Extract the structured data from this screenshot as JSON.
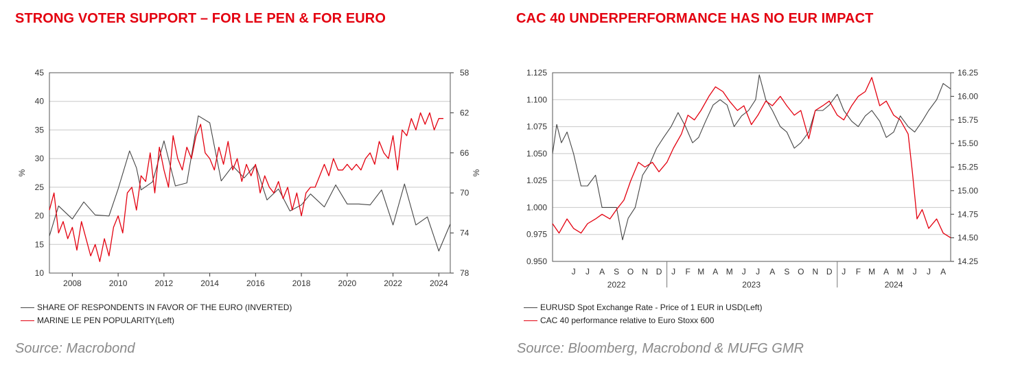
{
  "left": {
    "title": "STRONG VOTER SUPPORT – FOR LE PEN & FOR EURO",
    "source": "Source: Macrobond",
    "legend": [
      {
        "label": "SHARE OF RESPONDENTS IN FAVOR OF THE EURO (INVERTED)",
        "color": "#444444"
      },
      {
        "label": "MARINE LE PEN POPULARITY(Left)",
        "color": "#e3000f"
      }
    ]
  },
  "right": {
    "title": "CAC 40 UNDERPERFORMANCE HAS NO EUR IMPACT",
    "source": "Source: Bloomberg, Macrobond & MUFG GMR",
    "legend": [
      {
        "label": "EURUSD Spot Exchange Rate - Price of 1 EUR in USD(Left)",
        "color": "#444444"
      },
      {
        "label": "CAC 40 performance relative to Euro Stoxx 600",
        "color": "#e3000f"
      }
    ]
  },
  "chart_data": [
    {
      "type": "line",
      "title": "STRONG VOTER SUPPORT – FOR LE PEN & FOR EURO",
      "ylabel": "%",
      "y2label": "%",
      "xlim": [
        2007.0,
        2024.5
      ],
      "ylim": [
        10,
        45
      ],
      "y2lim": [
        58,
        78
      ],
      "y2_inverted": true,
      "x_ticks": [
        2008,
        2010,
        2012,
        2014,
        2016,
        2018,
        2020,
        2022,
        2024
      ],
      "y_ticks": [
        10,
        15,
        20,
        25,
        30,
        35,
        40,
        45
      ],
      "y2_ticks": [
        58,
        62,
        66,
        70,
        74,
        78
      ],
      "grid": true,
      "legend_position": "bottom-left",
      "series": [
        {
          "name": "SHARE OF RESPONDENTS IN FAVOR OF THE EURO (INVERTED)",
          "axis": "right",
          "color": "#444444",
          "x": [
            2007.0,
            2007.4,
            2008.0,
            2008.5,
            2009.0,
            2009.6,
            2010.0,
            2010.5,
            2010.8,
            2011.0,
            2011.5,
            2012.0,
            2012.5,
            2013.0,
            2013.5,
            2014.0,
            2014.5,
            2015.0,
            2015.5,
            2016.0,
            2016.5,
            2017.0,
            2017.5,
            2018.0,
            2018.4,
            2019.0,
            2019.5,
            2020.0,
            2020.5,
            2021.0,
            2021.5,
            2022.0,
            2022.5,
            2023.0,
            2023.5,
            2024.0,
            2024.5
          ],
          "values": [
            74.3,
            71.3,
            72.6,
            70.9,
            72.2,
            72.3,
            69.6,
            65.8,
            67.5,
            69.7,
            68.9,
            64.8,
            69.3,
            69.0,
            62.3,
            63.0,
            68.8,
            67.3,
            68.5,
            67.2,
            70.7,
            69.6,
            71.8,
            71.2,
            70.1,
            71.4,
            69.2,
            71.1,
            71.1,
            71.2,
            69.7,
            73.2,
            69.1,
            73.2,
            72.4,
            75.8,
            73.1
          ]
        },
        {
          "name": "MARINE LE PEN POPULARITY(Left)",
          "axis": "left",
          "color": "#e3000f",
          "x": [
            2007.0,
            2007.2,
            2007.4,
            2007.6,
            2007.8,
            2008.0,
            2008.2,
            2008.4,
            2008.6,
            2008.8,
            2009.0,
            2009.2,
            2009.4,
            2009.6,
            2009.8,
            2010.0,
            2010.2,
            2010.4,
            2010.6,
            2010.8,
            2011.0,
            2011.2,
            2011.4,
            2011.6,
            2011.8,
            2012.0,
            2012.2,
            2012.4,
            2012.6,
            2012.8,
            2013.0,
            2013.2,
            2013.4,
            2013.6,
            2013.8,
            2014.0,
            2014.2,
            2014.4,
            2014.6,
            2014.8,
            2015.0,
            2015.2,
            2015.4,
            2015.6,
            2015.8,
            2016.0,
            2016.2,
            2016.4,
            2016.6,
            2016.8,
            2017.0,
            2017.2,
            2017.4,
            2017.6,
            2017.8,
            2018.0,
            2018.2,
            2018.4,
            2018.6,
            2018.8,
            2019.0,
            2019.2,
            2019.4,
            2019.6,
            2019.8,
            2020.0,
            2020.2,
            2020.4,
            2020.6,
            2020.8,
            2021.0,
            2021.2,
            2021.4,
            2021.6,
            2021.8,
            2022.0,
            2022.2,
            2022.4,
            2022.6,
            2022.8,
            2023.0,
            2023.2,
            2023.4,
            2023.6,
            2023.8,
            2024.0,
            2024.2
          ],
          "values": [
            21,
            24,
            17,
            19,
            16,
            18,
            14,
            19,
            16,
            13,
            15,
            12,
            16,
            13,
            18,
            20,
            17,
            24,
            25,
            21,
            27,
            26,
            31,
            24,
            32,
            28,
            25,
            34,
            30,
            28,
            32,
            30,
            34,
            36,
            31,
            30,
            28,
            32,
            29,
            33,
            28,
            30,
            26,
            29,
            27,
            29,
            24,
            27,
            25,
            24,
            26,
            23,
            25,
            21,
            24,
            20,
            24,
            25,
            25,
            27,
            29,
            27,
            30,
            28,
            28,
            29,
            28,
            29,
            28,
            30,
            31,
            29,
            33,
            31,
            30,
            34,
            28,
            35,
            34,
            37,
            35,
            38,
            36,
            38,
            35,
            37,
            37
          ]
        }
      ]
    },
    {
      "type": "line",
      "title": "CAC 40 UNDERPERFORMANCE HAS NO EUR IMPACT",
      "xlim": [
        "2022-05-01",
        "2024-08-31"
      ],
      "ylim": [
        0.95,
        1.125
      ],
      "y2lim": [
        14.25,
        16.25
      ],
      "y_ticks": [
        0.95,
        0.975,
        1.0,
        1.025,
        1.05,
        1.075,
        1.1,
        1.125
      ],
      "y2_ticks": [
        14.25,
        14.5,
        14.75,
        15.0,
        15.25,
        15.5,
        15.75,
        16.0,
        16.25
      ],
      "x_month_labels": [
        "J",
        "J",
        "A",
        "S",
        "O",
        "N",
        "D",
        "J",
        "F",
        "M",
        "A",
        "M",
        "J",
        "J",
        "A",
        "S",
        "O",
        "N",
        "D",
        "J",
        "F",
        "M",
        "A",
        "M",
        "J",
        "J",
        "A"
      ],
      "x_year_labels": [
        "2022",
        "2023",
        "2024"
      ],
      "grid": true,
      "legend_position": "bottom-left",
      "series": [
        {
          "name": "EURUSD Spot Exchange Rate - Price of 1 EUR in USD(Left)",
          "axis": "left",
          "color": "#444444",
          "x": [
            "2022-05-01",
            "2022-05-10",
            "2022-05-20",
            "2022-06-01",
            "2022-06-15",
            "2022-07-01",
            "2022-07-15",
            "2022-08-01",
            "2022-08-15",
            "2022-09-01",
            "2022-09-15",
            "2022-09-28",
            "2022-10-10",
            "2022-10-25",
            "2022-11-10",
            "2022-11-25",
            "2022-12-10",
            "2022-12-25",
            "2023-01-10",
            "2023-01-25",
            "2023-02-10",
            "2023-02-25",
            "2023-03-10",
            "2023-03-25",
            "2023-04-10",
            "2023-04-25",
            "2023-05-10",
            "2023-05-25",
            "2023-06-10",
            "2023-06-25",
            "2023-07-10",
            "2023-07-18",
            "2023-08-01",
            "2023-08-15",
            "2023-09-01",
            "2023-09-15",
            "2023-10-01",
            "2023-10-15",
            "2023-11-01",
            "2023-11-15",
            "2023-12-01",
            "2023-12-15",
            "2024-01-01",
            "2024-01-15",
            "2024-02-01",
            "2024-02-15",
            "2024-03-01",
            "2024-03-15",
            "2024-04-01",
            "2024-04-15",
            "2024-05-01",
            "2024-05-15",
            "2024-06-01",
            "2024-06-15",
            "2024-07-01",
            "2024-07-15",
            "2024-08-01",
            "2024-08-15",
            "2024-08-31"
          ],
          "values": [
            1.05,
            1.077,
            1.06,
            1.07,
            1.05,
            1.02,
            1.02,
            1.03,
            1.0,
            1.0,
            1.0,
            0.97,
            0.99,
            1.0,
            1.03,
            1.04,
            1.055,
            1.065,
            1.075,
            1.088,
            1.075,
            1.06,
            1.065,
            1.08,
            1.095,
            1.1,
            1.095,
            1.075,
            1.085,
            1.09,
            1.1,
            1.123,
            1.1,
            1.09,
            1.075,
            1.07,
            1.055,
            1.06,
            1.07,
            1.09,
            1.09,
            1.095,
            1.105,
            1.09,
            1.08,
            1.075,
            1.085,
            1.09,
            1.08,
            1.065,
            1.07,
            1.085,
            1.075,
            1.07,
            1.08,
            1.09,
            1.1,
            1.115,
            1.11
          ]
        },
        {
          "name": "CAC 40 performance relative to Euro Stoxx 600",
          "axis": "right",
          "color": "#e3000f",
          "x": [
            "2022-05-01",
            "2022-05-15",
            "2022-06-01",
            "2022-06-15",
            "2022-07-01",
            "2022-07-15",
            "2022-08-01",
            "2022-08-15",
            "2022-09-01",
            "2022-09-15",
            "2022-10-01",
            "2022-10-15",
            "2022-11-01",
            "2022-11-15",
            "2022-12-01",
            "2022-12-15",
            "2023-01-01",
            "2023-01-15",
            "2023-02-01",
            "2023-02-15",
            "2023-03-01",
            "2023-03-15",
            "2023-04-01",
            "2023-04-15",
            "2023-05-01",
            "2023-05-15",
            "2023-06-01",
            "2023-06-15",
            "2023-07-01",
            "2023-07-15",
            "2023-08-01",
            "2023-08-15",
            "2023-09-01",
            "2023-09-15",
            "2023-10-01",
            "2023-10-15",
            "2023-11-01",
            "2023-11-15",
            "2023-12-01",
            "2023-12-15",
            "2024-01-01",
            "2024-01-15",
            "2024-02-01",
            "2024-02-15",
            "2024-03-01",
            "2024-03-15",
            "2024-04-01",
            "2024-04-15",
            "2024-05-01",
            "2024-05-15",
            "2024-06-01",
            "2024-06-10",
            "2024-06-20",
            "2024-07-01",
            "2024-07-15",
            "2024-08-01",
            "2024-08-15",
            "2024-08-31"
          ],
          "values": [
            14.65,
            14.55,
            14.7,
            14.6,
            14.55,
            14.65,
            14.7,
            14.75,
            14.7,
            14.8,
            14.9,
            15.1,
            15.3,
            15.25,
            15.3,
            15.2,
            15.3,
            15.45,
            15.6,
            15.8,
            15.75,
            15.85,
            16.0,
            16.1,
            16.05,
            15.95,
            15.85,
            15.9,
            15.7,
            15.8,
            15.95,
            15.9,
            16.0,
            15.9,
            15.8,
            15.85,
            15.55,
            15.85,
            15.9,
            15.95,
            15.8,
            15.75,
            15.9,
            16.0,
            16.05,
            16.2,
            15.9,
            15.95,
            15.8,
            15.75,
            15.6,
            15.2,
            14.7,
            14.8,
            14.6,
            14.7,
            14.55,
            14.5
          ]
        }
      ]
    }
  ]
}
